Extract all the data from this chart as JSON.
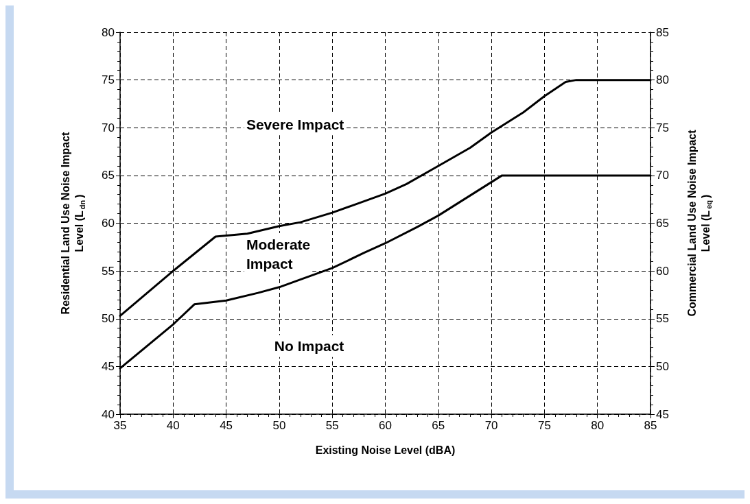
{
  "chart_data": {
    "type": "line",
    "xlabel": "Existing Noise Level (dBA)",
    "ylabel": "Residential Land Use Noise Impact Level (L$_{dn}$)",
    "y2label": "Commercial Land Use Noise Impact Level (L$_{eq}$)",
    "series": [
      {
        "color": "#000000",
        "x": [
          35,
          40,
          44,
          47,
          50,
          52,
          55,
          57,
          60,
          62,
          65,
          68,
          70,
          73,
          75,
          77,
          78,
          85
        ],
        "values": [
          50.3,
          55,
          58.6,
          58.9,
          59.7,
          60.1,
          61.1,
          61.9,
          63.1,
          64.1,
          66.0,
          67.9,
          69.5,
          71.6,
          73.3,
          74.8,
          75,
          75
        ]
      },
      {
        "color": "#000000",
        "x": [
          35,
          40,
          42,
          45,
          48,
          50,
          52,
          55,
          58,
          60,
          63,
          65,
          68,
          70,
          71,
          85
        ],
        "values": [
          44.8,
          49.4,
          51.5,
          51.9,
          52.7,
          53.3,
          54.1,
          55.3,
          56.9,
          57.9,
          59.6,
          60.8,
          62.9,
          64.3,
          65,
          65
        ]
      }
    ],
    "xlim": [
      35,
      85
    ],
    "xticks": [
      35,
      40,
      45,
      50,
      55,
      60,
      65,
      70,
      75,
      80,
      85
    ],
    "ylim": [
      40,
      80
    ],
    "yticks": [
      40,
      45,
      50,
      55,
      60,
      65,
      70,
      75,
      80
    ],
    "y2lim": [
      45,
      85
    ],
    "y2ticks": [
      45,
      50,
      55,
      60,
      65,
      70,
      75,
      80,
      85
    ],
    "grid": true,
    "marker": "none",
    "line_style": "solid",
    "annotations": [
      "Severe Impact",
      "Moderate Impact",
      "No Impact"
    ]
  }
}
